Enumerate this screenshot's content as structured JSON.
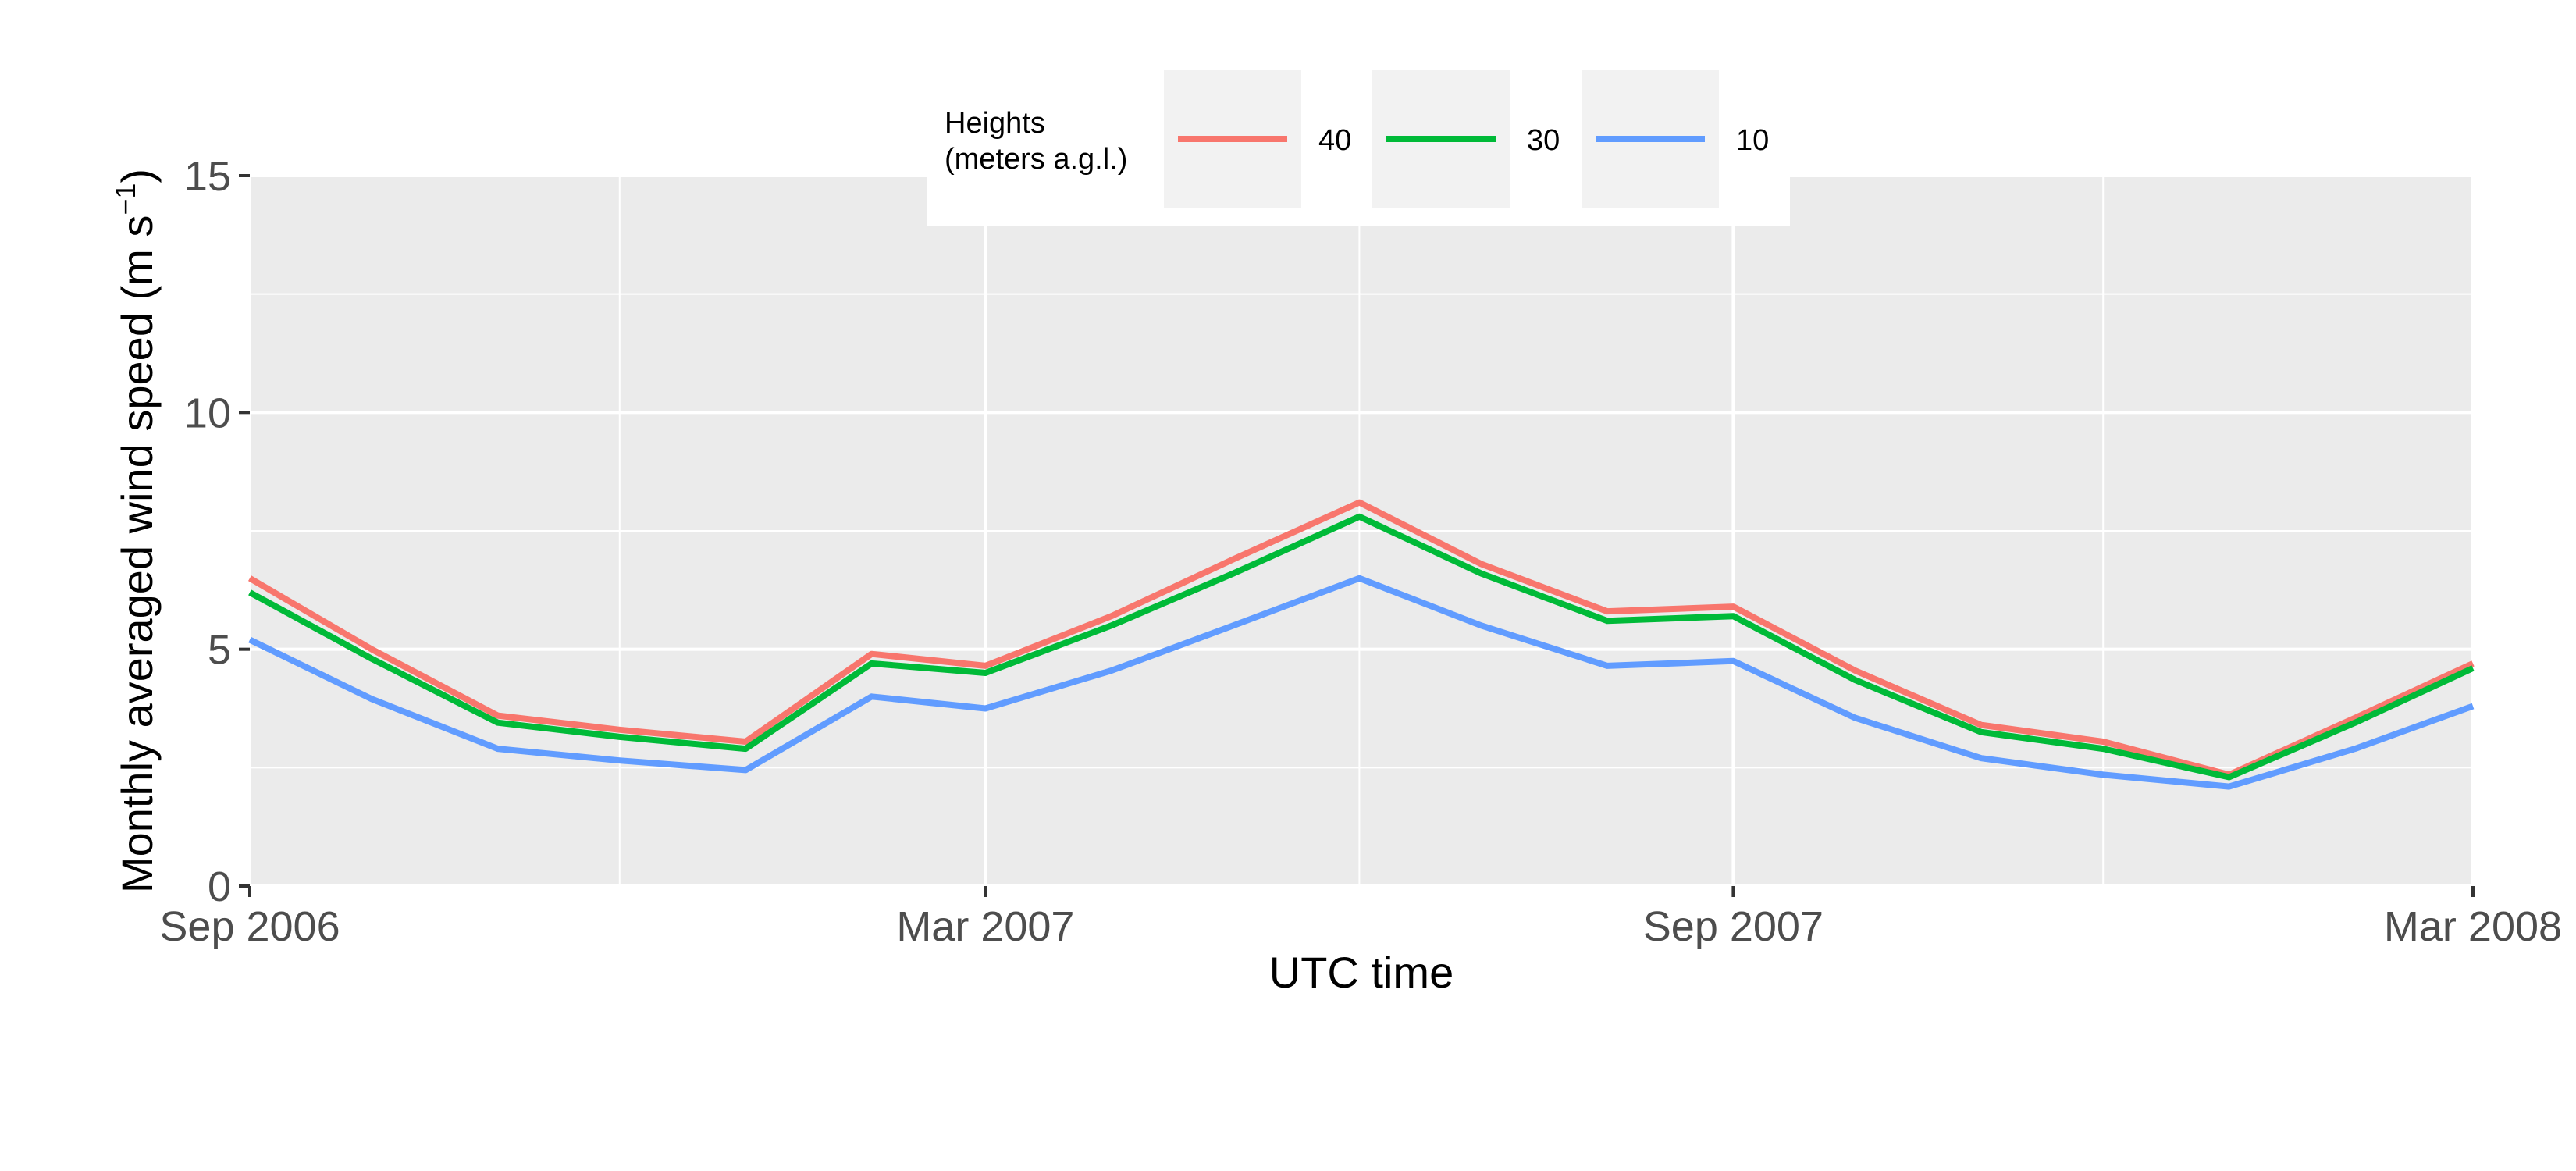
{
  "chart_data": {
    "type": "line",
    "title": "",
    "xlabel": "UTC time",
    "ylabel": "Monthly averaged wind speed (m s",
    "ylabel_superscript": "−1",
    "ylabel_end": ")",
    "x": [
      "2006-09-01",
      "2006-10-01",
      "2006-11-01",
      "2006-12-01",
      "2007-01-01",
      "2007-02-01",
      "2007-03-01",
      "2007-04-01",
      "2007-05-01",
      "2007-06-01",
      "2007-07-01",
      "2007-08-01",
      "2007-09-01",
      "2007-10-01",
      "2007-11-01",
      "2007-12-01",
      "2008-01-01",
      "2008-02-01",
      "2008-03-01"
    ],
    "xlim": [
      "2006-09-01",
      "2008-03-01"
    ],
    "ylim": [
      0,
      15
    ],
    "x_ticks": [
      {
        "date": "2006-09-01",
        "label": "Sep 2006"
      },
      {
        "date": "2007-03-01",
        "label": "Mar 2007"
      },
      {
        "date": "2007-09-01",
        "label": "Sep 2007"
      },
      {
        "date": "2008-03-01",
        "label": "Mar 2008"
      }
    ],
    "x_minor_ticks": [
      "2006-12-01",
      "2007-06-01",
      "2007-12-01"
    ],
    "y_ticks": [
      {
        "value": 0,
        "label": "0"
      },
      {
        "value": 5,
        "label": "5"
      },
      {
        "value": 10,
        "label": "10"
      },
      {
        "value": 15,
        "label": "15"
      }
    ],
    "y_minor_ticks": [
      2.5,
      7.5,
      12.5
    ],
    "grid": true,
    "legend": {
      "title_line1": "Heights",
      "title_line2": "(meters a.g.l.)",
      "placement": "top"
    },
    "series": [
      {
        "name": "40",
        "color": "#F8766D",
        "values": [
          6.5,
          5.0,
          3.6,
          3.3,
          3.05,
          4.9,
          4.65,
          5.7,
          6.9,
          8.1,
          6.8,
          5.8,
          5.9,
          4.55,
          3.4,
          3.05,
          2.35,
          3.55,
          4.7
        ]
      },
      {
        "name": "30",
        "color": "#00BA38",
        "values": [
          6.2,
          4.8,
          3.45,
          3.15,
          2.9,
          4.7,
          4.5,
          5.5,
          6.6,
          7.8,
          6.6,
          5.6,
          5.7,
          4.35,
          3.25,
          2.9,
          2.3,
          3.45,
          4.6
        ]
      },
      {
        "name": "10",
        "color": "#619CFF",
        "values": [
          5.2,
          3.95,
          2.9,
          2.65,
          2.45,
          4.0,
          3.75,
          4.55,
          5.5,
          6.5,
          5.5,
          4.65,
          4.75,
          3.55,
          2.7,
          2.35,
          2.1,
          2.9,
          3.8
        ]
      }
    ]
  }
}
